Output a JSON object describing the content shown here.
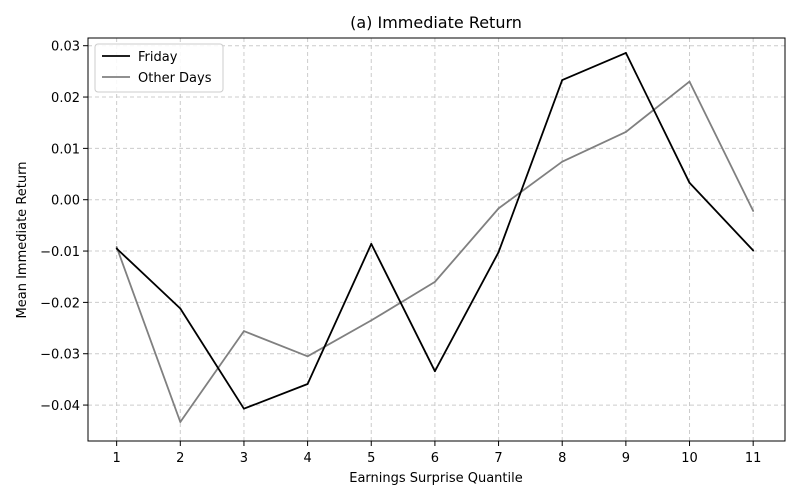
{
  "chart_data": {
    "type": "line",
    "title": "(a) Immediate Return",
    "xlabel": "Earnings Surprise Quantile",
    "ylabel": "Mean Immediate Return",
    "x": [
      1,
      2,
      3,
      4,
      5,
      6,
      7,
      8,
      9,
      10,
      11
    ],
    "xticks": [
      "1",
      "2",
      "3",
      "4",
      "5",
      "6",
      "7",
      "8",
      "9",
      "10",
      "11"
    ],
    "xlim": [
      0.55,
      11.5
    ],
    "ylim": [
      -0.047,
      0.0315
    ],
    "yticks": [
      0.03,
      0.02,
      0.01,
      0.0,
      -0.01,
      -0.02,
      -0.03,
      -0.04
    ],
    "ytick_labels": [
      "0.03",
      "0.02",
      "0.01",
      "0.00",
      "−0.01",
      "−0.02",
      "−0.03",
      "−0.04"
    ],
    "grid": true,
    "legend_position": "top-left",
    "series": [
      {
        "name": "Friday",
        "color": "#000000",
        "values": [
          -0.0095,
          -0.0212,
          -0.0407,
          -0.0359,
          -0.0086,
          -0.0334,
          -0.0102,
          0.0233,
          0.0286,
          0.0033,
          -0.0099
        ]
      },
      {
        "name": "Other Days",
        "color": "#808080",
        "values": [
          -0.0092,
          -0.0433,
          -0.0256,
          -0.0305,
          -0.0235,
          -0.016,
          -0.0017,
          0.0074,
          0.0132,
          0.023,
          -0.0022
        ]
      }
    ]
  }
}
